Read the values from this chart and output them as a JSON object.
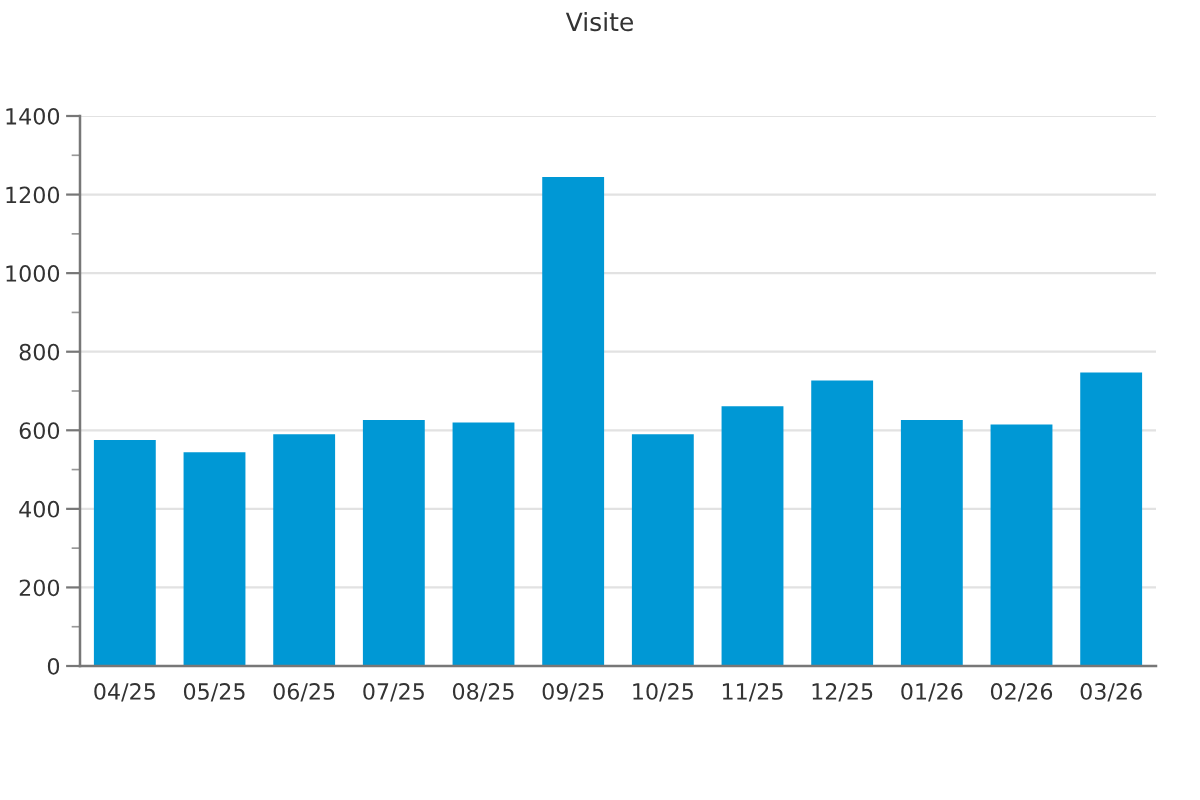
{
  "chart_data": {
    "type": "bar",
    "title": "Visite",
    "categories": [
      "04/25",
      "05/25",
      "06/25",
      "07/25",
      "08/25",
      "09/25",
      "10/25",
      "11/25",
      "12/25",
      "01/26",
      "02/26",
      "03/26"
    ],
    "values": [
      575,
      544,
      590,
      626,
      620,
      1245,
      590,
      661,
      727,
      626,
      615,
      747
    ],
    "color": "#0098d5",
    "ylim": [
      0,
      1400
    ],
    "yticks": [
      0,
      200,
      400,
      600,
      800,
      1000,
      1200,
      1400
    ],
    "grid": "y",
    "legend": false
  }
}
